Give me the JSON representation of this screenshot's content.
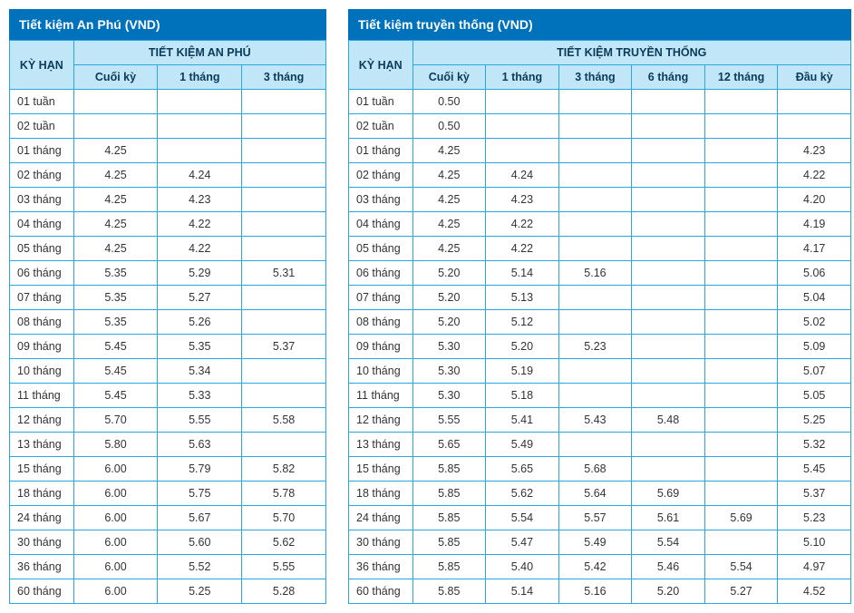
{
  "colors": {
    "title_bg": "#0072bc",
    "header_bg": "#c1e6f7",
    "border": "#2aa7e0",
    "text": "#333333",
    "title_text": "#ffffff"
  },
  "left": {
    "title": "Tiết kiệm An Phú (VND)",
    "corner": "KỲ HẠN",
    "group_header": "TIẾT KIỆM AN PHÚ",
    "columns": [
      "Cuối kỳ",
      "1 tháng",
      "3 tháng"
    ],
    "rows": [
      {
        "term": "01 tuần",
        "v": [
          "",
          "",
          ""
        ]
      },
      {
        "term": "02 tuần",
        "v": [
          "",
          "",
          ""
        ]
      },
      {
        "term": "01 tháng",
        "v": [
          "4.25",
          "",
          ""
        ]
      },
      {
        "term": "02 tháng",
        "v": [
          "4.25",
          "4.24",
          ""
        ]
      },
      {
        "term": "03 tháng",
        "v": [
          "4.25",
          "4.23",
          ""
        ]
      },
      {
        "term": "04 tháng",
        "v": [
          "4.25",
          "4.22",
          ""
        ]
      },
      {
        "term": "05 tháng",
        "v": [
          "4.25",
          "4.22",
          ""
        ]
      },
      {
        "term": "06 tháng",
        "v": [
          "5.35",
          "5.29",
          "5.31"
        ]
      },
      {
        "term": "07 tháng",
        "v": [
          "5.35",
          "5.27",
          ""
        ]
      },
      {
        "term": "08 tháng",
        "v": [
          "5.35",
          "5.26",
          ""
        ]
      },
      {
        "term": "09 tháng",
        "v": [
          "5.45",
          "5.35",
          "5.37"
        ]
      },
      {
        "term": "10 tháng",
        "v": [
          "5.45",
          "5.34",
          ""
        ]
      },
      {
        "term": "11 tháng",
        "v": [
          "5.45",
          "5.33",
          ""
        ]
      },
      {
        "term": "12 tháng",
        "v": [
          "5.70",
          "5.55",
          "5.58"
        ]
      },
      {
        "term": "13 tháng",
        "v": [
          "5.80",
          "5.63",
          ""
        ]
      },
      {
        "term": "15 tháng",
        "v": [
          "6.00",
          "5.79",
          "5.82"
        ]
      },
      {
        "term": "18 tháng",
        "v": [
          "6.00",
          "5.75",
          "5.78"
        ]
      },
      {
        "term": "24 tháng",
        "v": [
          "6.00",
          "5.67",
          "5.70"
        ]
      },
      {
        "term": "30 tháng",
        "v": [
          "6.00",
          "5.60",
          "5.62"
        ]
      },
      {
        "term": "36 tháng",
        "v": [
          "6.00",
          "5.52",
          "5.55"
        ]
      },
      {
        "term": "60 tháng",
        "v": [
          "6.00",
          "5.25",
          "5.28"
        ]
      }
    ]
  },
  "right": {
    "title": "Tiết kiệm truyền thống (VND)",
    "corner": "KỲ HẠN",
    "group_header": "TIẾT KIỆM TRUYỀN THỐNG",
    "columns": [
      "Cuối kỳ",
      "1 tháng",
      "3 tháng",
      "6 tháng",
      "12 tháng",
      "Đầu kỳ"
    ],
    "rows": [
      {
        "term": "01 tuần",
        "v": [
          "0.50",
          "",
          "",
          "",
          "",
          ""
        ]
      },
      {
        "term": "02 tuần",
        "v": [
          "0.50",
          "",
          "",
          "",
          "",
          ""
        ]
      },
      {
        "term": "01 tháng",
        "v": [
          "4.25",
          "",
          "",
          "",
          "",
          "4.23"
        ]
      },
      {
        "term": "02 tháng",
        "v": [
          "4.25",
          "4.24",
          "",
          "",
          "",
          "4.22"
        ]
      },
      {
        "term": "03 tháng",
        "v": [
          "4.25",
          "4.23",
          "",
          "",
          "",
          "4.20"
        ]
      },
      {
        "term": "04 tháng",
        "v": [
          "4.25",
          "4.22",
          "",
          "",
          "",
          "4.19"
        ]
      },
      {
        "term": "05 tháng",
        "v": [
          "4.25",
          "4.22",
          "",
          "",
          "",
          "4.17"
        ]
      },
      {
        "term": "06 tháng",
        "v": [
          "5.20",
          "5.14",
          "5.16",
          "",
          "",
          "5.06"
        ]
      },
      {
        "term": "07 tháng",
        "v": [
          "5.20",
          "5.13",
          "",
          "",
          "",
          "5.04"
        ]
      },
      {
        "term": "08 tháng",
        "v": [
          "5.20",
          "5.12",
          "",
          "",
          "",
          "5.02"
        ]
      },
      {
        "term": "09 tháng",
        "v": [
          "5.30",
          "5.20",
          "5.23",
          "",
          "",
          "5.09"
        ]
      },
      {
        "term": "10 tháng",
        "v": [
          "5.30",
          "5.19",
          "",
          "",
          "",
          "5.07"
        ]
      },
      {
        "term": "11 tháng",
        "v": [
          "5.30",
          "5.18",
          "",
          "",
          "",
          "5.05"
        ]
      },
      {
        "term": "12 tháng",
        "v": [
          "5.55",
          "5.41",
          "5.43",
          "5.48",
          "",
          "5.25"
        ]
      },
      {
        "term": "13 tháng",
        "v": [
          "5.65",
          "5.49",
          "",
          "",
          "",
          "5.32"
        ]
      },
      {
        "term": "15 tháng",
        "v": [
          "5.85",
          "5.65",
          "5.68",
          "",
          "",
          "5.45"
        ]
      },
      {
        "term": "18 tháng",
        "v": [
          "5.85",
          "5.62",
          "5.64",
          "5.69",
          "",
          "5.37"
        ]
      },
      {
        "term": "24 tháng",
        "v": [
          "5.85",
          "5.54",
          "5.57",
          "5.61",
          "5.69",
          "5.23"
        ]
      },
      {
        "term": "30 tháng",
        "v": [
          "5.85",
          "5.47",
          "5.49",
          "5.54",
          "",
          "5.10"
        ]
      },
      {
        "term": "36 tháng",
        "v": [
          "5.85",
          "5.40",
          "5.42",
          "5.46",
          "5.54",
          "4.97"
        ]
      },
      {
        "term": "60 tháng",
        "v": [
          "5.85",
          "5.14",
          "5.16",
          "5.20",
          "5.27",
          "4.52"
        ]
      }
    ]
  }
}
